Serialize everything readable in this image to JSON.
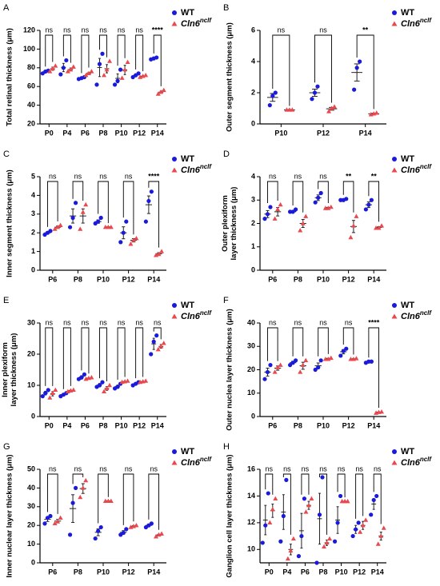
{
  "chart_data": [
    {
      "type": "dot",
      "panel": "A",
      "ylabel": [
        "Total retinal thickness (μm)"
      ],
      "categories": [
        "P0",
        "P4",
        "P6",
        "P8",
        "P10",
        "P12",
        "P14"
      ],
      "ylim": [
        20,
        120
      ],
      "yticks": [
        20,
        40,
        60,
        80,
        100,
        120
      ],
      "series": [
        {
          "name": "WT",
          "color": "#1a1adb",
          "marker": "circle",
          "values": [
            [
              74,
              76,
              77
            ],
            [
              73,
              80,
              88
            ],
            [
              68,
              69,
              70
            ],
            [
              62,
              84,
              95
            ],
            [
              62,
              66,
              78
            ],
            [
              70,
              72,
              74
            ],
            [
              89,
              90,
              91
            ]
          ],
          "means": [
            75.7,
            80.3,
            69,
            80.3,
            68.7,
            72,
            90
          ],
          "sems": [
            0.9,
            4.4,
            0.6,
            9.7,
            4.8,
            1.2,
            0.6
          ]
        },
        {
          "name": "Cln6",
          "name_superscript": "nclf",
          "color": "#e8494f",
          "marker": "triangle",
          "values": [
            [
              76,
              79,
              82
            ],
            [
              76,
              78,
              81
            ],
            [
              72,
              74,
              76
            ],
            [
              72,
              78,
              87
            ],
            [
              69,
              78,
              86
            ],
            [
              70,
              71,
              72
            ],
            [
              52,
              54,
              56
            ]
          ],
          "means": [
            79,
            78.3,
            74,
            79,
            77.7,
            71,
            54
          ],
          "sems": [
            1.7,
            1.5,
            1.2,
            4.4,
            5.0,
            0.6,
            1.2
          ]
        }
      ],
      "significance": [
        "ns",
        "ns",
        "ns",
        "ns",
        "ns",
        "ns",
        "****"
      ]
    },
    {
      "type": "dot",
      "panel": "B",
      "ylabel": [
        "Outer segment thickness (μm)"
      ],
      "categories": [
        "P10",
        "P12",
        "P14"
      ],
      "ylim": [
        0,
        6
      ],
      "yticks": [
        0,
        2,
        4,
        6
      ],
      "series": [
        {
          "name": "WT",
          "color": "#1a1adb",
          "marker": "circle",
          "values": [
            [
              1.2,
              1.8,
              2.0
            ],
            [
              1.6,
              2.0,
              2.4
            ],
            [
              2.2,
              3.6,
              4.0
            ]
          ],
          "means": [
            1.7,
            2.0,
            3.3
          ],
          "sems": [
            0.25,
            0.23,
            0.55
          ]
        },
        {
          "name": "Cln6",
          "name_superscript": "nclf",
          "color": "#e8494f",
          "marker": "triangle",
          "values": [
            [
              0.9,
              0.9,
              0.9
            ],
            [
              0.8,
              1.0,
              1.1
            ],
            [
              0.6,
              0.65,
              0.7
            ]
          ],
          "means": [
            0.9,
            0.97,
            0.65
          ],
          "sems": [
            0.02,
            0.09,
            0.03
          ]
        }
      ],
      "significance": [
        "ns",
        "ns",
        "**"
      ]
    },
    {
      "type": "dot",
      "panel": "C",
      "ylabel": [
        "Inner segment thickness (μm)"
      ],
      "categories": [
        "P6",
        "P8",
        "P10",
        "P12",
        "P14"
      ],
      "ylim": [
        0,
        5
      ],
      "yticks": [
        0,
        1,
        2,
        3,
        4,
        5
      ],
      "series": [
        {
          "name": "WT",
          "color": "#1a1adb",
          "marker": "circle",
          "values": [
            [
              1.9,
              2.0,
              2.1
            ],
            [
              2.3,
              2.8,
              3.6
            ],
            [
              2.5,
              2.6,
              2.8
            ],
            [
              1.5,
              2.0,
              2.6
            ],
            [
              2.6,
              3.7,
              4.2
            ]
          ],
          "means": [
            2.0,
            2.9,
            2.6,
            2.0,
            3.5
          ],
          "sems": [
            0.06,
            0.38,
            0.09,
            0.32,
            0.47
          ]
        },
        {
          "name": "Cln6",
          "name_superscript": "nclf",
          "color": "#e8494f",
          "marker": "triangle",
          "values": [
            [
              2.2,
              2.3,
              2.4
            ],
            [
              2.2,
              3.1,
              3.5
            ],
            [
              2.3,
              2.3,
              2.3
            ],
            [
              1.4,
              1.6,
              1.7
            ],
            [
              0.8,
              0.85,
              1.0
            ]
          ],
          "means": [
            2.3,
            2.9,
            2.3,
            1.6,
            0.88
          ],
          "sems": [
            0.06,
            0.38,
            0.02,
            0.09,
            0.06
          ]
        }
      ],
      "significance": [
        "ns",
        "ns",
        "ns",
        "ns",
        "****"
      ]
    },
    {
      "type": "dot",
      "panel": "D",
      "ylabel": [
        "Outer plexiform",
        "layer thickness (μm)"
      ],
      "categories": [
        "P6",
        "P8",
        "P10",
        "P12",
        "P14"
      ],
      "ylim": [
        0,
        4
      ],
      "yticks": [
        0,
        1,
        2,
        3,
        4
      ],
      "series": [
        {
          "name": "WT",
          "color": "#1a1adb",
          "marker": "circle",
          "values": [
            [
              2.2,
              2.4,
              2.7
            ],
            [
              2.5,
              2.5,
              2.6
            ],
            [
              2.9,
              3.1,
              3.3
            ],
            [
              3.0,
              3.0,
              3.05
            ],
            [
              2.6,
              2.8,
              3.0
            ]
          ],
          "means": [
            2.4,
            2.5,
            3.1,
            3.0,
            2.8
          ],
          "sems": [
            0.15,
            0.03,
            0.12,
            0.02,
            0.12
          ]
        },
        {
          "name": "Cln6",
          "name_superscript": "nclf",
          "color": "#e8494f",
          "marker": "triangle",
          "values": [
            [
              2.2,
              2.6,
              2.8
            ],
            [
              1.7,
              2.0,
              2.3
            ],
            [
              2.65,
              2.65,
              2.7
            ],
            [
              1.4,
              1.9,
              2.3
            ],
            [
              1.8,
              1.8,
              1.9
            ]
          ],
          "means": [
            2.5,
            2.0,
            2.67,
            1.87,
            1.83
          ],
          "sems": [
            0.18,
            0.17,
            0.02,
            0.26,
            0.03
          ]
        }
      ],
      "significance": [
        "ns",
        "ns",
        "ns",
        "**",
        "**"
      ]
    },
    {
      "type": "dot",
      "panel": "E",
      "ylabel": [
        "Inner plexiform",
        "layer thickness (μm)"
      ],
      "categories": [
        "P0",
        "P4",
        "P6",
        "P8",
        "P10",
        "P12",
        "P14"
      ],
      "ylim": [
        0,
        30
      ],
      "yticks": [
        0,
        10,
        20,
        30
      ],
      "series": [
        {
          "name": "WT",
          "color": "#1a1adb",
          "marker": "circle",
          "values": [
            [
              6.5,
              7.5,
              8.5
            ],
            [
              6.5,
              7,
              7.5
            ],
            [
              12,
              12.5,
              13.5
            ],
            [
              9.5,
              10,
              11
            ],
            [
              9,
              9.5,
              10.5
            ],
            [
              10,
              10.5,
              11
            ],
            [
              20,
              24,
              26
            ]
          ],
          "means": [
            7.5,
            7,
            12.7,
            10.2,
            9.7,
            10.5,
            23.3
          ],
          "sems": [
            0.6,
            0.3,
            0.4,
            0.4,
            0.4,
            0.3,
            1.8
          ]
        },
        {
          "name": "Cln6",
          "name_superscript": "nclf",
          "color": "#e8494f",
          "marker": "triangle",
          "values": [
            [
              6,
              7.5,
              8.5
            ],
            [
              8,
              8.3,
              8.5
            ],
            [
              12,
              12.3,
              12.5
            ],
            [
              8,
              9,
              10
            ],
            [
              11,
              11.2,
              11.4
            ],
            [
              11,
              11.2,
              11.4
            ],
            [
              21.5,
              22.5,
              23.5
            ]
          ],
          "means": [
            7.3,
            8.3,
            12.3,
            9,
            11.2,
            11.2,
            22.5
          ],
          "sems": [
            0.7,
            0.1,
            0.1,
            0.6,
            0.1,
            0.1,
            0.6
          ]
        }
      ],
      "significance": [
        "ns",
        "ns",
        "ns",
        "ns",
        "ns",
        "ns",
        "ns"
      ]
    },
    {
      "type": "dot",
      "panel": "F",
      "ylabel": [
        "Outer nuclea layer thickness (μm)"
      ],
      "categories": [
        "P6",
        "P8",
        "P10",
        "P12",
        "P14"
      ],
      "ylim": [
        0,
        40
      ],
      "yticks": [
        0,
        10,
        20,
        30,
        40
      ],
      "series": [
        {
          "name": "WT",
          "color": "#1a1adb",
          "marker": "circle",
          "values": [
            [
              16,
              19,
              22
            ],
            [
              22,
              23,
              24
            ],
            [
              20,
              21,
              24
            ],
            [
              26,
              28,
              29
            ],
            [
              23,
              23.5,
              23.5
            ]
          ],
          "means": [
            19,
            23,
            21.7,
            27.7,
            23.3
          ],
          "sems": [
            1.7,
            0.6,
            1.2,
            0.9,
            0.2
          ]
        },
        {
          "name": "Cln6",
          "name_superscript": "nclf",
          "color": "#e8494f",
          "marker": "triangle",
          "values": [
            [
              19,
              21,
              22
            ],
            [
              19,
              22,
              24
            ],
            [
              24.5,
              24.5,
              25
            ],
            [
              24.5,
              24.5,
              24.8
            ],
            [
              1.5,
              1.8,
              2
            ]
          ],
          "means": [
            20.7,
            21.7,
            24.7,
            24.6,
            1.8
          ],
          "sems": [
            0.9,
            1.5,
            0.2,
            0.1,
            0.1
          ]
        }
      ],
      "significance": [
        "ns",
        "ns",
        "ns",
        "ns",
        "****"
      ]
    },
    {
      "type": "dot",
      "panel": "G",
      "ylabel": [
        "Inner nuclear layer thickness (μm)"
      ],
      "categories": [
        "P6",
        "P8",
        "P10",
        "P12",
        "P14"
      ],
      "ylim": [
        0,
        50
      ],
      "yticks": [
        0,
        10,
        20,
        30,
        40,
        50
      ],
      "series": [
        {
          "name": "WT",
          "color": "#1a1adb",
          "marker": "circle",
          "values": [
            [
              21,
              24,
              25
            ],
            [
              15,
              32,
              40
            ],
            [
              13,
              17,
              19
            ],
            [
              15,
              16,
              18
            ],
            [
              19,
              20,
              21
            ]
          ],
          "means": [
            23.3,
            29,
            16.3,
            16.3,
            20
          ],
          "sems": [
            1.2,
            7.4,
            1.8,
            0.9,
            0.6
          ]
        },
        {
          "name": "Cln6",
          "name_superscript": "nclf",
          "color": "#e8494f",
          "marker": "triangle",
          "values": [
            [
              21,
              22,
              24
            ],
            [
              35,
              40,
              44
            ],
            [
              33,
              33,
              33
            ],
            [
              19,
              19.5,
              20
            ],
            [
              14,
              15,
              15.5
            ]
          ],
          "means": [
            22.3,
            39.7,
            33,
            19.5,
            14.8
          ],
          "sems": [
            0.9,
            2.6,
            0.1,
            0.3,
            0.4
          ]
        }
      ],
      "significance": [
        "ns",
        "ns",
        "ns",
        "ns",
        "ns"
      ]
    },
    {
      "type": "dot",
      "panel": "H",
      "ylabel": [
        "Ganglion cell layer thickness (μm)"
      ],
      "categories": [
        "P0",
        "P4",
        "P6",
        "P8",
        "P10",
        "P12",
        "P14"
      ],
      "ylim": [
        9,
        16
      ],
      "yticks": [
        10,
        12,
        14,
        16
      ],
      "series": [
        {
          "name": "WT",
          "color": "#1a1adb",
          "marker": "circle",
          "values": [
            [
              10.5,
              11.8,
              14.2
            ],
            [
              10.6,
              12.5,
              15.2
            ],
            [
              9.5,
              11,
              13.8
            ],
            [
              9,
              12.6,
              15.4
            ],
            [
              10.6,
              12,
              14
            ],
            [
              11,
              11.5,
              12
            ],
            [
              12.6,
              13.7,
              14
            ]
          ],
          "means": [
            12.2,
            12.8,
            11.4,
            12.3,
            12.2,
            11.5,
            13.4
          ],
          "sems": [
            1.1,
            1.3,
            1.3,
            1.9,
            1.0,
            0.3,
            0.4
          ]
        },
        {
          "name": "Cln6",
          "name_superscript": "nclf",
          "color": "#e8494f",
          "marker": "triangle",
          "values": [
            [
              12,
              13,
              13.8
            ],
            [
              9.3,
              9.9,
              10.8
            ],
            [
              12.8,
              13.3,
              13.8
            ],
            [
              10.2,
              10.5,
              10.8
            ],
            [
              13.6,
              13.6,
              13.6
            ],
            [
              11.3,
              11.8,
              12.2
            ],
            [
              10.4,
              11,
              11.6
            ]
          ],
          "means": [
            12.9,
            10,
            13.3,
            10.5,
            13.6,
            11.8,
            11
          ],
          "sems": [
            0.5,
            0.4,
            0.3,
            0.2,
            0.02,
            0.3,
            0.3
          ]
        }
      ],
      "significance": [
        "ns",
        "ns",
        "ns",
        "ns",
        "ns",
        "ns",
        "ns"
      ]
    }
  ]
}
